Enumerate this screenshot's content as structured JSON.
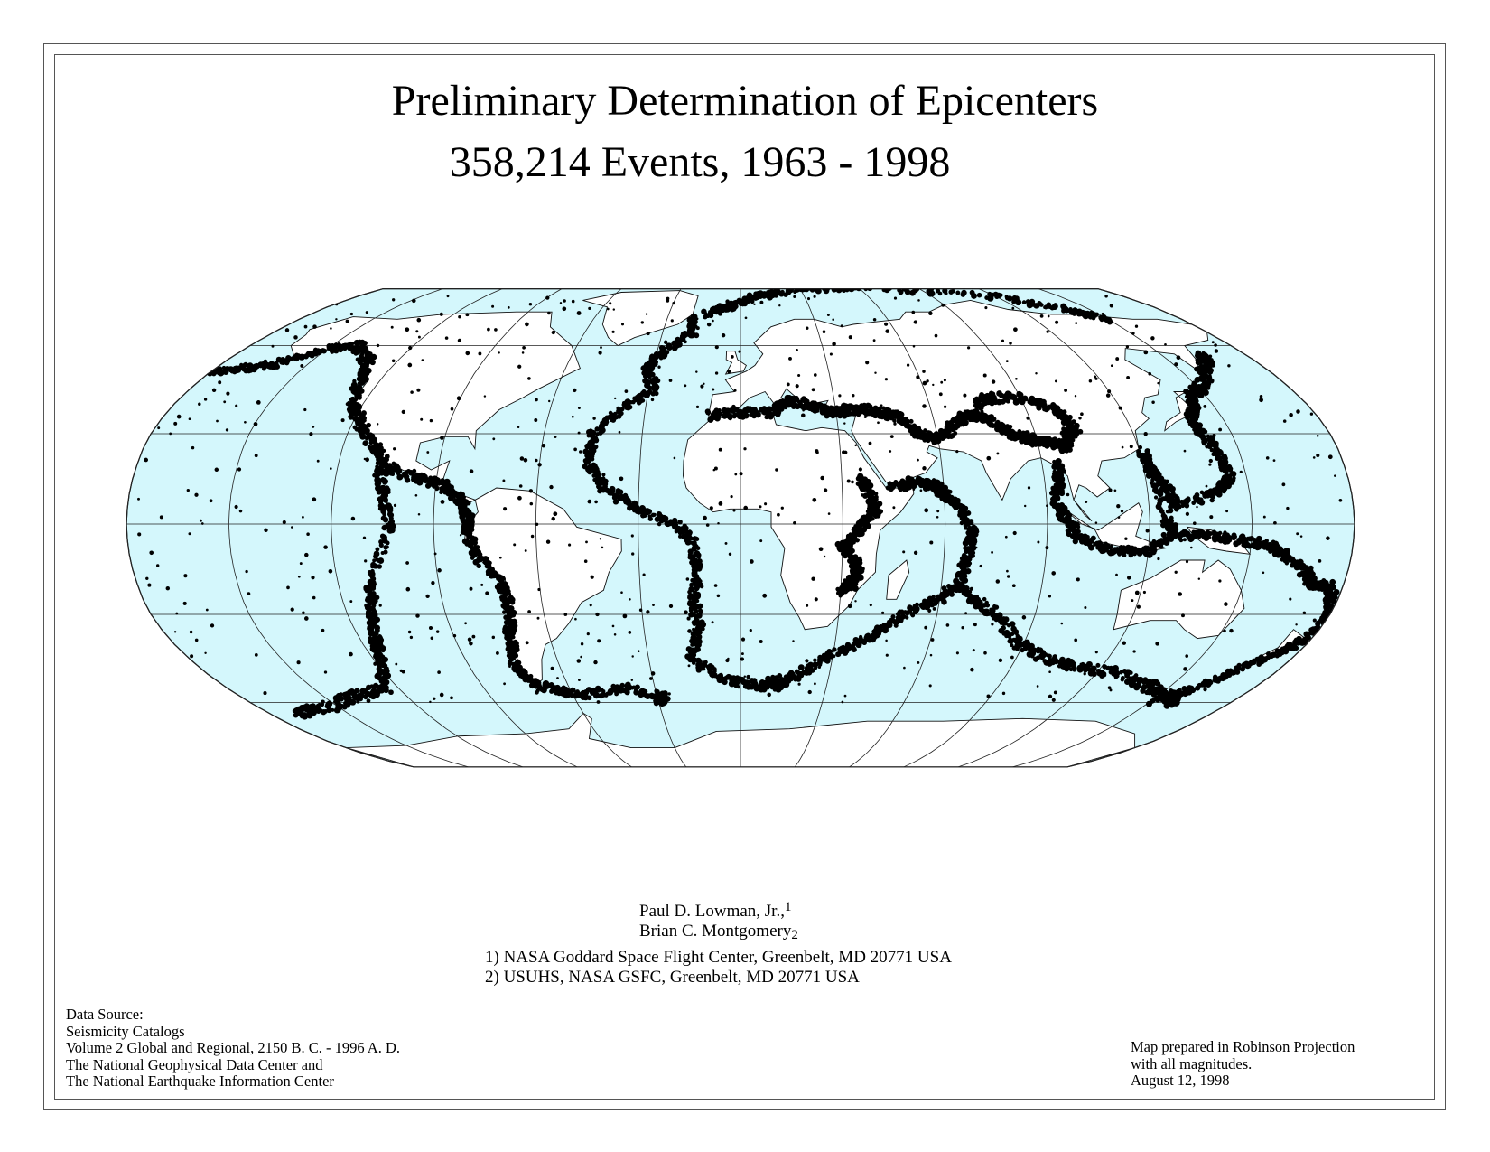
{
  "title": {
    "line1": "Preliminary Determination of Epicenters",
    "line2": "358,214 Events, 1963 - 1998"
  },
  "authors": [
    {
      "name": "Paul D. Lowman, Jr.,",
      "mark": "1"
    },
    {
      "name": "Brian C. Montgomery",
      "mark": "2"
    }
  ],
  "affiliations": [
    "1) NASA Goddard Space Flight Center, Greenbelt, MD 20771 USA",
    "2) USUHS, NASA GSFC, Greenbelt, MD 20771 USA"
  ],
  "data_source": [
    "Data Source:",
    "Seismicity Catalogs",
    "Volume 2 Global and Regional, 2150 B. C. - 1996 A. D.",
    "The National Geophysical Data Center and",
    "The National Earthquake Information Center"
  ],
  "projection_note": [
    "Map prepared in Robinson Projection",
    "with all magnitudes.",
    "August 12, 1998"
  ],
  "map": {
    "projection": "Robinson",
    "ocean_color": "#d4f7fc",
    "land_color": "#ffffff",
    "epicenter_color": "#000000",
    "graticule_color": "#222222"
  }
}
